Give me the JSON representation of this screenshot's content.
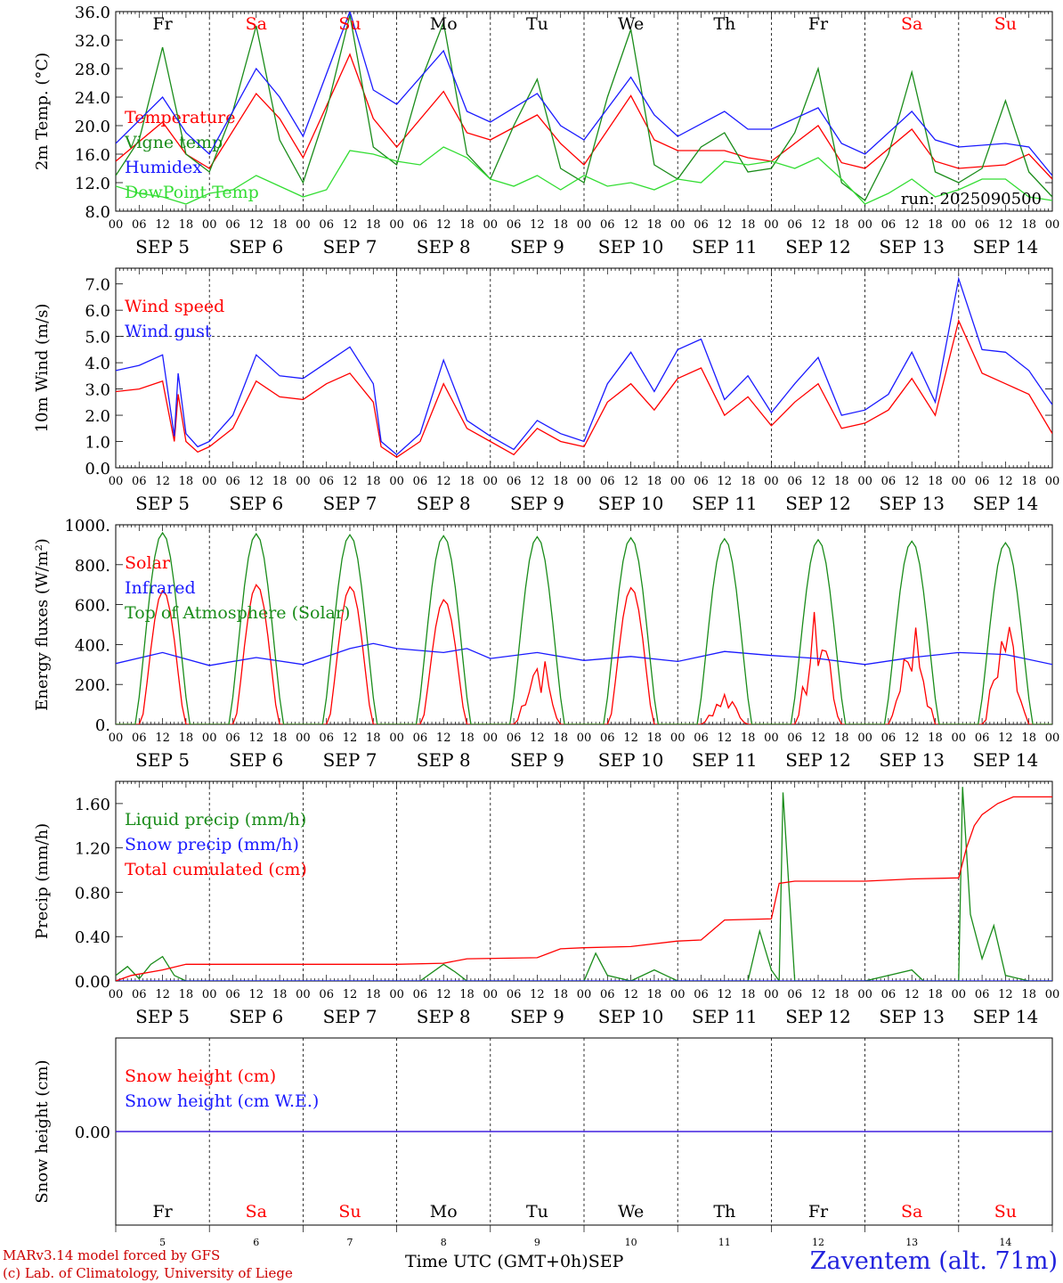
{
  "colors": {
    "red": "#ff0000",
    "green": "#1a8c1a",
    "blue": "#1a1aff",
    "lime": "#33dd33",
    "holiday": "#ff0000",
    "black": "#000000"
  },
  "days": [
    "Fr",
    "Sa",
    "Su",
    "Mo",
    "Tu",
    "We",
    "Th",
    "Fr",
    "Sa",
    "Su"
  ],
  "weekend": [
    false,
    true,
    true,
    false,
    false,
    false,
    false,
    false,
    true,
    true
  ],
  "dates": [
    "SEP  5",
    "SEP  6",
    "SEP  7",
    "SEP  8",
    "SEP  9",
    "SEP 10",
    "SEP 11",
    "SEP 12",
    "SEP 13",
    "SEP 14"
  ],
  "day_numbers": [
    "5",
    "6",
    "7",
    "8",
    "9",
    "10",
    "11",
    "12",
    "13",
    "14"
  ],
  "hour_labels": [
    "00",
    "06",
    "12",
    "18"
  ],
  "last_hour_label": "00",
  "run_label": "run: 2025090500",
  "footer": {
    "model": "MARv3.14 model forced by GFS",
    "copyright": "(c) Lab. of Climatology, University of Liege",
    "time_axis": "Time UTC (GMT+0h)",
    "month": "SEP",
    "station": "Zaventem (alt. 71m)"
  },
  "chart_data": [
    {
      "type": "line",
      "ylabel": "2m Temp. (°C)",
      "ylim": [
        8,
        36
      ],
      "ytick_labels": [
        "8.0",
        "12.0",
        "16.0",
        "20.0",
        "24.0",
        "28.0",
        "32.0",
        "36.0"
      ],
      "series": [
        {
          "name": "Temperature",
          "color": "red",
          "hours": [
            0,
            12,
            18,
            24,
            36,
            42,
            48,
            60,
            66,
            72,
            84,
            90,
            96,
            108,
            114,
            120,
            132,
            138,
            144,
            156,
            162,
            168,
            180,
            186,
            192,
            204,
            210,
            216,
            228,
            234,
            240
          ],
          "values": [
            15.0,
            20.5,
            16.0,
            14.0,
            24.5,
            21.0,
            15.5,
            30.0,
            21.0,
            17.0,
            24.8,
            19.0,
            18.0,
            21.5,
            17.5,
            14.5,
            24.2,
            18.0,
            16.5,
            16.5,
            15.5,
            15.0,
            20.0,
            14.8,
            14.0,
            19.5,
            15.0,
            14.0,
            14.5,
            16.0,
            12.5
          ]
        },
        {
          "name": "Vigne temp",
          "color": "green",
          "hours": [
            0,
            6,
            12,
            18,
            24,
            30,
            36,
            42,
            48,
            54,
            60,
            66,
            72,
            78,
            84,
            90,
            96,
            102,
            108,
            114,
            120,
            126,
            132,
            138,
            144,
            150,
            156,
            162,
            168,
            174,
            180,
            186,
            192,
            198,
            204,
            210,
            216,
            222,
            228,
            234,
            240
          ],
          "values": [
            13.0,
            18.0,
            31.0,
            16.0,
            13.5,
            22.0,
            34.0,
            18.0,
            12.0,
            22.0,
            35.5,
            17.0,
            14.5,
            26.0,
            34.5,
            16.0,
            12.5,
            20.0,
            26.5,
            14.0,
            12.0,
            24.0,
            33.5,
            14.5,
            12.5,
            17.0,
            19.0,
            13.5,
            14.0,
            19.0,
            28.0,
            12.0,
            9.5,
            16.0,
            27.5,
            13.5,
            12.0,
            14.0,
            23.5,
            13.5,
            10.0
          ]
        },
        {
          "name": "Humidex",
          "color": "blue",
          "hours": [
            0,
            12,
            18,
            24,
            36,
            42,
            48,
            60,
            66,
            72,
            84,
            90,
            96,
            108,
            114,
            120,
            132,
            138,
            144,
            156,
            162,
            168,
            180,
            186,
            192,
            204,
            210,
            216,
            228,
            234,
            240
          ],
          "values": [
            17.5,
            24.0,
            19.0,
            16.0,
            28.0,
            24.0,
            18.5,
            36.0,
            25.0,
            23.0,
            30.5,
            22.0,
            20.5,
            24.5,
            20.0,
            18.0,
            26.8,
            21.5,
            18.5,
            22.0,
            19.5,
            19.5,
            22.5,
            17.5,
            16.0,
            22.0,
            18.0,
            17.0,
            17.5,
            17.0,
            13.0
          ]
        },
        {
          "name": "DewPoint Temp",
          "color": "lime",
          "hours": [
            0,
            6,
            12,
            18,
            24,
            30,
            36,
            42,
            48,
            54,
            60,
            66,
            72,
            78,
            84,
            90,
            96,
            102,
            108,
            114,
            120,
            126,
            132,
            138,
            144,
            150,
            156,
            162,
            168,
            174,
            180,
            186,
            192,
            198,
            204,
            210,
            216,
            222,
            228,
            234,
            240
          ],
          "values": [
            11.5,
            10.5,
            10.0,
            9.0,
            10.5,
            11.0,
            13.0,
            11.5,
            10.0,
            11.0,
            16.5,
            16.0,
            15.0,
            14.5,
            17.0,
            15.5,
            12.5,
            11.5,
            13.0,
            11.0,
            13.0,
            11.5,
            12.0,
            11.0,
            12.5,
            12.0,
            15.0,
            14.5,
            15.0,
            14.0,
            15.5,
            12.5,
            9.0,
            10.5,
            12.5,
            10.0,
            11.0,
            12.5,
            12.5,
            10.0,
            9.5
          ]
        }
      ]
    },
    {
      "type": "line",
      "ylabel": "10m Wind (m/s)",
      "ylim": [
        0,
        7.6
      ],
      "ytick_labels": [
        "0.0",
        "1.0",
        "2.0",
        "3.0",
        "4.0",
        "5.0",
        "6.0",
        "7.0"
      ],
      "reference_line": 5.0,
      "series": [
        {
          "name": "Wind speed",
          "color": "red",
          "hours": [
            0,
            6,
            12,
            15,
            16,
            18,
            21,
            24,
            30,
            36,
            42,
            48,
            54,
            60,
            66,
            68,
            72,
            78,
            84,
            90,
            96,
            102,
            108,
            114,
            120,
            126,
            132,
            138,
            144,
            150,
            156,
            162,
            168,
            174,
            180,
            186,
            192,
            198,
            204,
            210,
            216,
            222,
            228,
            234,
            240
          ],
          "values": [
            2.9,
            3.0,
            3.3,
            1.0,
            2.8,
            1.0,
            0.6,
            0.8,
            1.5,
            3.3,
            2.7,
            2.6,
            3.2,
            3.6,
            2.5,
            0.8,
            0.4,
            1.0,
            3.2,
            1.5,
            1.0,
            0.5,
            1.5,
            1.0,
            0.8,
            2.5,
            3.2,
            2.2,
            3.4,
            3.8,
            2.0,
            2.7,
            1.6,
            2.5,
            3.2,
            1.5,
            1.7,
            2.2,
            3.4,
            2.0,
            5.6,
            3.6,
            3.2,
            2.8,
            1.3
          ]
        },
        {
          "name": "Wind gust",
          "color": "blue",
          "hours": [
            0,
            6,
            12,
            15,
            16,
            18,
            21,
            24,
            30,
            36,
            42,
            48,
            54,
            60,
            66,
            68,
            72,
            78,
            84,
            90,
            96,
            102,
            108,
            114,
            120,
            126,
            132,
            138,
            144,
            150,
            156,
            162,
            168,
            174,
            180,
            186,
            192,
            198,
            204,
            210,
            216,
            222,
            228,
            234,
            240
          ],
          "values": [
            3.7,
            3.9,
            4.3,
            1.2,
            3.6,
            1.3,
            0.8,
            1.0,
            2.0,
            4.3,
            3.5,
            3.4,
            4.0,
            4.6,
            3.2,
            1.0,
            0.5,
            1.3,
            4.1,
            1.8,
            1.2,
            0.7,
            1.8,
            1.3,
            1.0,
            3.2,
            4.4,
            2.9,
            4.5,
            4.9,
            2.6,
            3.5,
            2.1,
            3.2,
            4.2,
            2.0,
            2.2,
            2.8,
            4.4,
            2.5,
            7.2,
            4.5,
            4.4,
            3.7,
            2.4
          ]
        }
      ]
    },
    {
      "type": "line",
      "ylabel": "Energy fluxes (W/m²)",
      "ylim": [
        0,
        1000
      ],
      "ytick_labels": [
        "0.",
        "200.",
        "400.",
        "600.",
        "800.",
        "1000."
      ],
      "series": [
        {
          "name": "Solar",
          "color": "red",
          "peaks": [
            670,
            700,
            690,
            625,
            410,
            685,
            190,
            620,
            590,
            600
          ],
          "noisy": [
            false,
            false,
            false,
            false,
            true,
            false,
            true,
            true,
            true,
            true
          ]
        },
        {
          "name": "Infrared",
          "color": "blue",
          "hours": [
            0,
            12,
            24,
            36,
            48,
            60,
            66,
            72,
            84,
            90,
            96,
            108,
            120,
            132,
            144,
            156,
            168,
            180,
            192,
            204,
            216,
            228,
            240
          ],
          "values": [
            305,
            360,
            295,
            335,
            300,
            380,
            405,
            380,
            360,
            380,
            330,
            360,
            320,
            340,
            315,
            365,
            345,
            330,
            300,
            335,
            360,
            350,
            300
          ]
        },
        {
          "name": "Top of Atmosphere (Solar)",
          "color": "green",
          "peaks": [
            960,
            955,
            950,
            945,
            940,
            935,
            930,
            925,
            918,
            910
          ]
        }
      ]
    },
    {
      "type": "line",
      "ylabel": "Precip (mm/h)",
      "ylim": [
        0,
        1.8
      ],
      "ytick_labels": [
        "0.00",
        "0.40",
        "0.80",
        "1.20",
        "1.60"
      ],
      "series": [
        {
          "name": "Liquid precip (mm/h)",
          "color": "green",
          "hours": [
            0,
            3,
            6,
            9,
            12,
            15,
            18,
            24,
            60,
            66,
            72,
            78,
            84,
            87,
            90,
            96,
            120,
            123,
            126,
            132,
            138,
            141,
            144,
            162,
            165,
            168,
            170,
            171,
            174,
            177,
            180,
            192,
            204,
            207,
            210,
            216,
            217,
            219,
            222,
            225,
            228,
            234,
            240
          ],
          "values": [
            0.05,
            0.13,
            0.02,
            0.15,
            0.22,
            0.05,
            0.0,
            0.0,
            0.0,
            0.0,
            0.0,
            0.0,
            0.15,
            0.08,
            0.0,
            0.0,
            0.0,
            0.25,
            0.05,
            0.0,
            0.1,
            0.05,
            0.0,
            0.0,
            0.45,
            0.1,
            0.0,
            1.7,
            0.0,
            0.0,
            0.0,
            0.0,
            0.1,
            0.0,
            0.0,
            0.0,
            1.75,
            0.6,
            0.2,
            0.5,
            0.05,
            0.0,
            0.0
          ]
        },
        {
          "name": "Snow precip (mm/h)",
          "color": "blue",
          "hours": [
            0,
            240
          ],
          "values": [
            0.0,
            0.0
          ]
        },
        {
          "name": "Total cumulated (cm)",
          "color": "red",
          "hours": [
            0,
            4,
            12,
            18,
            30,
            60,
            72,
            84,
            90,
            108,
            114,
            120,
            132,
            144,
            150,
            156,
            168,
            170,
            174,
            180,
            192,
            204,
            216,
            218,
            220,
            222,
            226,
            230,
            240
          ],
          "values": [
            0.0,
            0.05,
            0.1,
            0.15,
            0.15,
            0.15,
            0.15,
            0.16,
            0.2,
            0.21,
            0.29,
            0.3,
            0.31,
            0.36,
            0.37,
            0.55,
            0.56,
            0.88,
            0.9,
            0.9,
            0.9,
            0.92,
            0.93,
            1.2,
            1.4,
            1.5,
            1.6,
            1.66,
            1.66
          ]
        }
      ]
    },
    {
      "type": "line",
      "ylabel": "Snow height (cm)",
      "ylim": [
        -1,
        1
      ],
      "ytick_labels": [
        "0.00"
      ],
      "series": [
        {
          "name": "Snow height (cm)",
          "color": "red",
          "hours": [
            0,
            240
          ],
          "values": [
            0.0,
            0.0
          ]
        },
        {
          "name": "Snow height (cm W.E.)",
          "color": "blue",
          "hours": [
            0,
            240
          ],
          "values": [
            0.0,
            0.0
          ]
        }
      ]
    }
  ]
}
